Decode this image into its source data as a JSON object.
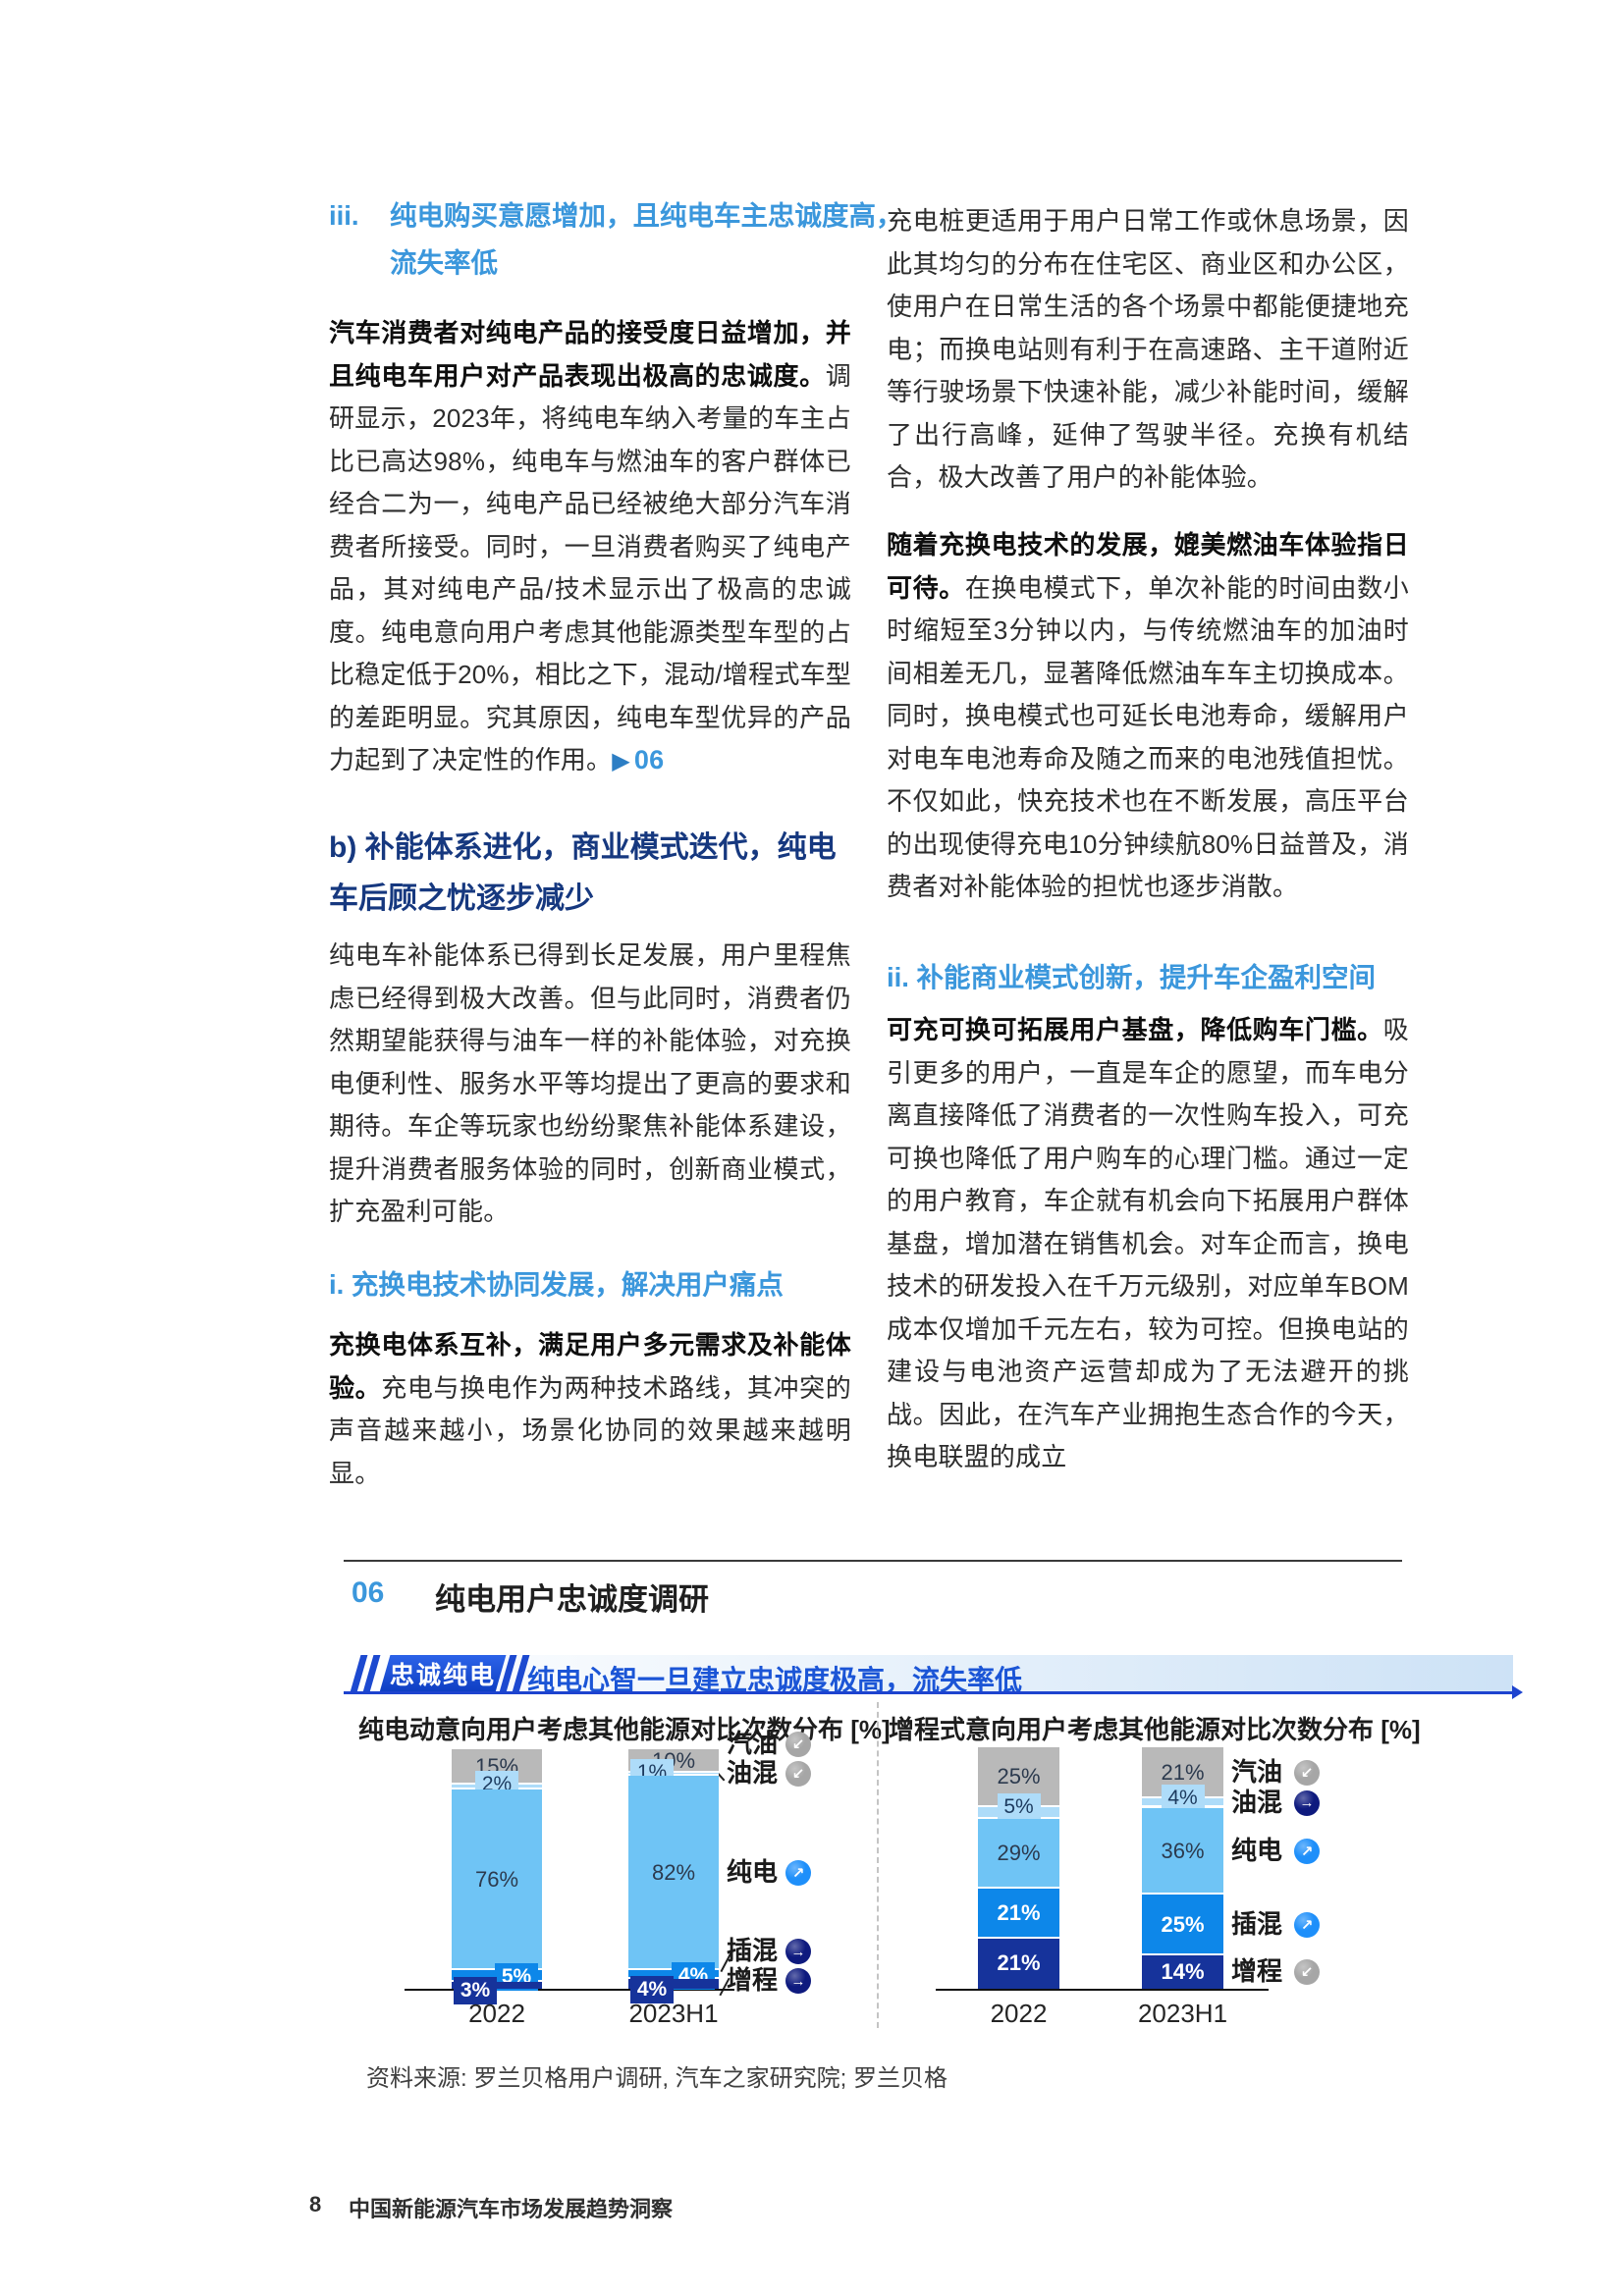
{
  "colors": {
    "accent_light_blue": "#3b97dc",
    "accent_navy_heading": "#16387f",
    "banner_blue": "#1d43cf",
    "banner_text_blue": "#1b55d6",
    "trend_up_icon": "#1e8ffa",
    "trend_flat_icon": "#0e1a7e",
    "trend_down_icon": "#a6a6a6"
  },
  "left_column": {
    "heading_iii": {
      "marker": "iii.",
      "line": "纯电购买意愿增加，且纯电车主忠诚度高，流失率低"
    },
    "para1": {
      "lead": "汽车消费者对纯电产品的接受度日益增加，并且纯电车用户对产品表现出极高的忠诚度。",
      "rest": "调研显示，2023年，将纯电车纳入考量的车主占比已高达98%，纯电车与燃油车的客户群体已经合二为一，纯电产品已经被绝大部分汽车消费者所接受。同时，一旦消费者购买了纯电产品，其对纯电产品/技术显示出了极高的忠诚度。纯电意向用户考虑其他能源类型车型的占比稳定低于20%，相比之下，混动/增程式车型的差距明显。究其原因，纯电车型优异的产品力起到了决定性的作用。",
      "ref_arrow": "▶",
      "ref_label": "06"
    },
    "heading_b": "b) 补能体系进化，商业模式迭代，纯电车后顾之忧逐步减少",
    "para2": "纯电车补能体系已得到长足发展，用户里程焦虑已经得到极大改善。但与此同时，消费者仍然期望能获得与油车一样的补能体验，对充换电便利性、服务水平等均提出了更高的要求和期待。车企等玩家也纷纷聚焦补能体系建设，提升消费者服务体验的同时，创新商业模式，扩充盈利可能。",
    "heading_i": "i. 充换电技术协同发展，解决用户痛点",
    "para3": {
      "lead": "充换电体系互补，满足用户多元需求及补能体验。",
      "rest": "充电与换电作为两种技术路线，其冲突的声音越来越小，场景化协同的效果越来越明显。"
    }
  },
  "right_column": {
    "para1": "充电桩更适用于用户日常工作或休息场景，因此其均匀的分布在住宅区、商业区和办公区，使用户在日常生活的各个场景中都能便捷地充电；而换电站则有利于在高速路、主干道附近等行驶场景下快速补能，减少补能时间，缓解了出行高峰，延伸了驾驶半径。充换有机结合，极大改善了用户的补能体验。",
    "para2": {
      "lead": "随着充换电技术的发展，媲美燃油车体验指日可待。",
      "rest": "在换电模式下，单次补能的时间由数小时缩短至3分钟以内，与传统燃油车的加油时间相差无几，显著降低燃油车车主切换成本。同时，换电模式也可延长电池寿命，缓解用户对电车电池寿命及随之而来的电池残值担忧。不仅如此，快充技术也在不断发展，高压平台的出现使得充电10分钟续航80%日益普及，消费者对补能体验的担忧也逐步消散。"
    },
    "heading_ii": "ii. 补能商业模式创新，提升车企盈利空间",
    "para3": {
      "lead": "可充可换可拓展用户基盘，降低购车门槛。",
      "rest": "吸引更多的用户，一直是车企的愿望，而车电分离直接降低了消费者的一次性购车投入，可充可换也降低了用户购车的心理门槛。通过一定的用户教育，车企就有机会向下拓展用户群体基盘，增加潜在销售机会。对车企而言，换电技术的研发投入在千万元级别，对应单车BOM成本仅增加千元左右，较为可控。但换电站的建设与电池资产运营却成为了无法避开的挑战。因此，在汽车产业拥抱生态合作的今天，换电联盟的成立"
    }
  },
  "figure": {
    "number": "06",
    "title": "纯电用户忠诚度调研",
    "banner_badge": "忠诚纯电",
    "banner_text": "纯电心智一旦建立忠诚度极高，流失率低",
    "source": "资料来源: 罗兰贝格用户调研, 汽车之家研究院; 罗兰贝格"
  },
  "footer": {
    "page_number": "8",
    "doc_title": "中国新能源汽车市场发展趋势洞察"
  },
  "chart_data": [
    {
      "type": "bar",
      "stacked": true,
      "title": "纯电动意向用户考虑其他能源对比次数分布 [%]",
      "categories": [
        "2022",
        "2023H1"
      ],
      "ylim": [
        0,
        100
      ],
      "grid": false,
      "legend_position": "right",
      "series": [
        {
          "name": "汽油",
          "values": [
            15,
            10
          ],
          "color": "#b9b9b9",
          "trend": "down"
        },
        {
          "name": "油混",
          "values": [
            2,
            1
          ],
          "color": "#aedcf9",
          "trend": "down"
        },
        {
          "name": "纯电",
          "values": [
            76,
            82
          ],
          "color": "#6fc4f5",
          "trend": "up"
        },
        {
          "name": "插混",
          "values": [
            5,
            4
          ],
          "color": "#0d87e9",
          "trend": "flat"
        },
        {
          "name": "增程",
          "values": [
            3,
            4
          ],
          "color": "#16339b",
          "trend": "flat"
        }
      ]
    },
    {
      "type": "bar",
      "stacked": true,
      "title": "增程式意向用户考虑其他能源对比次数分布 [%]",
      "categories": [
        "2022",
        "2023H1"
      ],
      "ylim": [
        0,
        100
      ],
      "grid": false,
      "legend_position": "right",
      "series": [
        {
          "name": "汽油",
          "values": [
            25,
            21
          ],
          "color": "#b9b9b9",
          "trend": "down"
        },
        {
          "name": "油混",
          "values": [
            5,
            4
          ],
          "color": "#aedcf9",
          "trend": "flat"
        },
        {
          "name": "纯电",
          "values": [
            29,
            36
          ],
          "color": "#6fc4f5",
          "trend": "up"
        },
        {
          "name": "插混",
          "values": [
            21,
            25
          ],
          "color": "#0d87e9",
          "trend": "up"
        },
        {
          "name": "增程",
          "values": [
            21,
            14
          ],
          "color": "#16339b",
          "trend": "down"
        }
      ]
    }
  ]
}
